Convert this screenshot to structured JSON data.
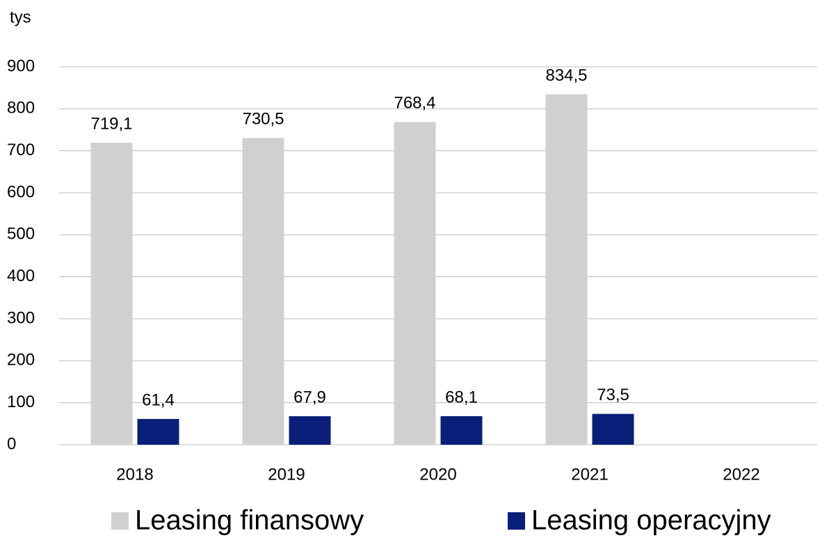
{
  "chart_data": {
    "type": "bar",
    "y_label": "tys",
    "categories": [
      "2018",
      "2019",
      "2020",
      "2021",
      "2022"
    ],
    "series": [
      {
        "name": "Leasing finansowy",
        "color": "#d0d0d0",
        "values": [
          719.1,
          730.5,
          768.4,
          834.5,
          null
        ],
        "value_labels": [
          "719,1",
          "730,5",
          "768,4",
          "834,5",
          null
        ]
      },
      {
        "name": "Leasing operacyjny",
        "color": "#0a1f7a",
        "values": [
          61.4,
          67.9,
          68.1,
          73.5,
          null
        ],
        "value_labels": [
          "61,4",
          "67,9",
          "68,1",
          "73,5",
          null
        ]
      }
    ],
    "ylim": [
      0,
      900
    ],
    "yticks": [
      0,
      100,
      200,
      300,
      400,
      500,
      600,
      700,
      800,
      900
    ],
    "grid": true,
    "legend": "bottom"
  }
}
